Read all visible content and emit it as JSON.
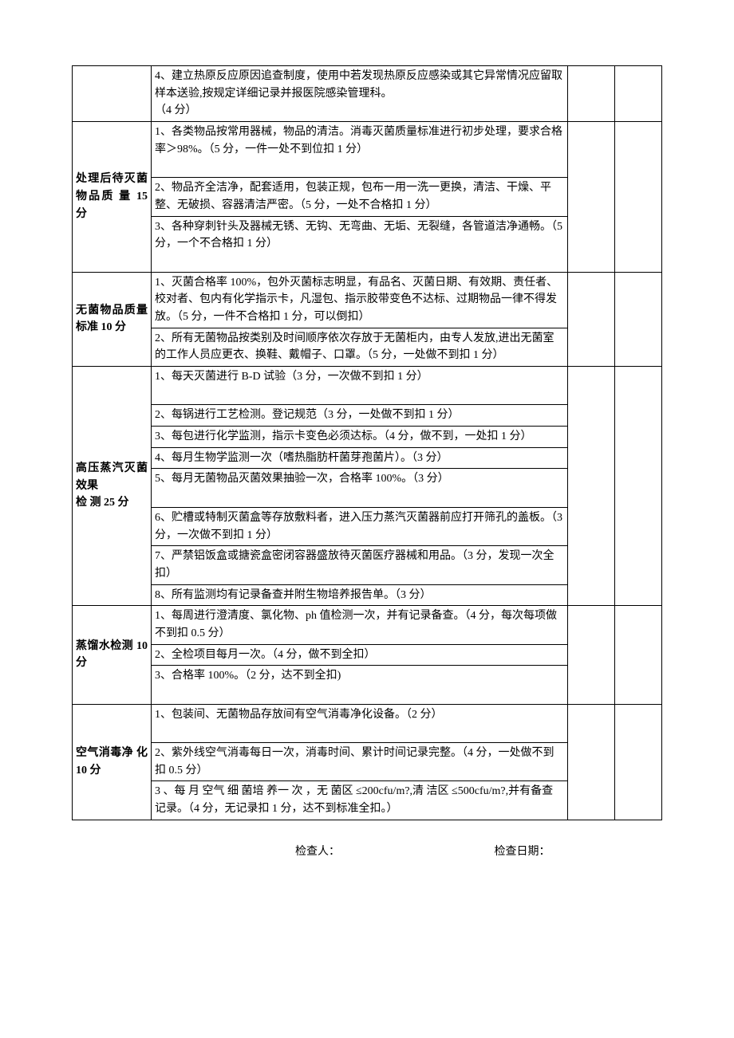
{
  "sections": [
    {
      "category": "",
      "criteria": [
        "4、建立热原反应原因追查制度，使用中若发现热原反应感染或其它异常情况应留取样本送验,按规定详细记录并报医院感染管理科。<br>（4 分）"
      ]
    },
    {
      "category": "处理后待灭菌物品质 量 15 分",
      "criteria": [
        "1、各类物品按常用器械，物品的清洁。消毒灭菌质量标准进行初步处理，要求合格率＞98%。（5 分，一件一处不到位扣 1 分）<br>&nbsp;",
        "2、物品齐全洁净，配套适用，包装正规，包布一用一洗一更换，清洁、干燥、平整、无破损、容器清洁严密。（5 分，一处不合格扣 1 分）",
        "3、各种穿刺针头及器械无锈、无钩、无弯曲、无垢、无裂缝，各管道洁净通畅。（5 分，一个不合格扣 1 分）<br>&nbsp;"
      ]
    },
    {
      "category": "无菌物品质量标准 10 分",
      "criteria": [
        "1、灭菌合格率 100%，包外灭菌标志明显，有品名、灭菌日期、有效期、责任者、校对者、包内有化学指示卡，凡湿包、指示胶带变色不达标、过期物品一律不得发放。（5 分，一件不合格扣 1 分，可以倒扣）",
        "2、所有无菌物品按类别及时间顺序依次存放于无菌柜内，由专人发放,进出无菌室的工作人员应更衣、换鞋、戴帽子、口罩。（5 分，一处做不到扣 1 分）"
      ]
    },
    {
      "category": "高压蒸汽灭菌效果<br>检 测 25 分",
      "criteria": [
        "1、每天灭菌进行 B-D 试验（3 分，一次做不到扣 1 分）<br>&nbsp;",
        "2、每锅进行工艺检测。登记规范（3 分，一处做不到扣 1 分）",
        "3、每包进行化学监测，指示卡变色必须达标。（4 分，做不到，一处扣 1 分）",
        "4、每月生物学监测一次（嗜热脂肪杆菌芽孢菌片）。（3 分）",
        "5、每月无菌物品灭菌效果抽验一次，合格率 100%。（3 分）<br>&nbsp;",
        "6、贮槽或特制灭菌盒等存放敷料者，进入压力蒸汽灭菌器前应打开筛孔的盖板。（3 分，一次做不到扣 1 分）",
        "7、严禁铝饭盒或搪瓷盒密闭容器盛放待灭菌医疗器械和用品。（3 分，发现一次全扣）",
        "8、所有监测均有记录备查并附生物培养报告单。（3 分）"
      ]
    },
    {
      "category": "蒸馏水检测 10 分",
      "criteria": [
        "1、每周进行澄清度、氯化物、ph 值检测一次，并有记录备查。（4 分，每次每项做不到扣 0.5 分）",
        "2、全检项目每月一次。（4 分，做不到全扣）",
        "3、合格率 100%。（2 分，达不到全扣)<br>&nbsp;"
      ]
    },
    {
      "category": "空气消毒净 化 10 分",
      "criteria": [
        "1、包装间、无菌物品存放间有空气消毒净化设备。（2 分）<br>&nbsp;",
        "2、紫外线空气消毒每日一次，消毒时间、累计时间记录完整。（4 分，一处做不到扣 0.5 分）",
        "3 、每 月 空气 细 菌培 养一 次 ，无 菌区 ≤200cfu/m?,清 洁区 ≤500cfu/m?,并有备查记录。（4 分，无记录扣 1 分，达不到标准全扣。）"
      ]
    }
  ],
  "footer": {
    "inspector": "检查人：",
    "date": "检查日期："
  }
}
